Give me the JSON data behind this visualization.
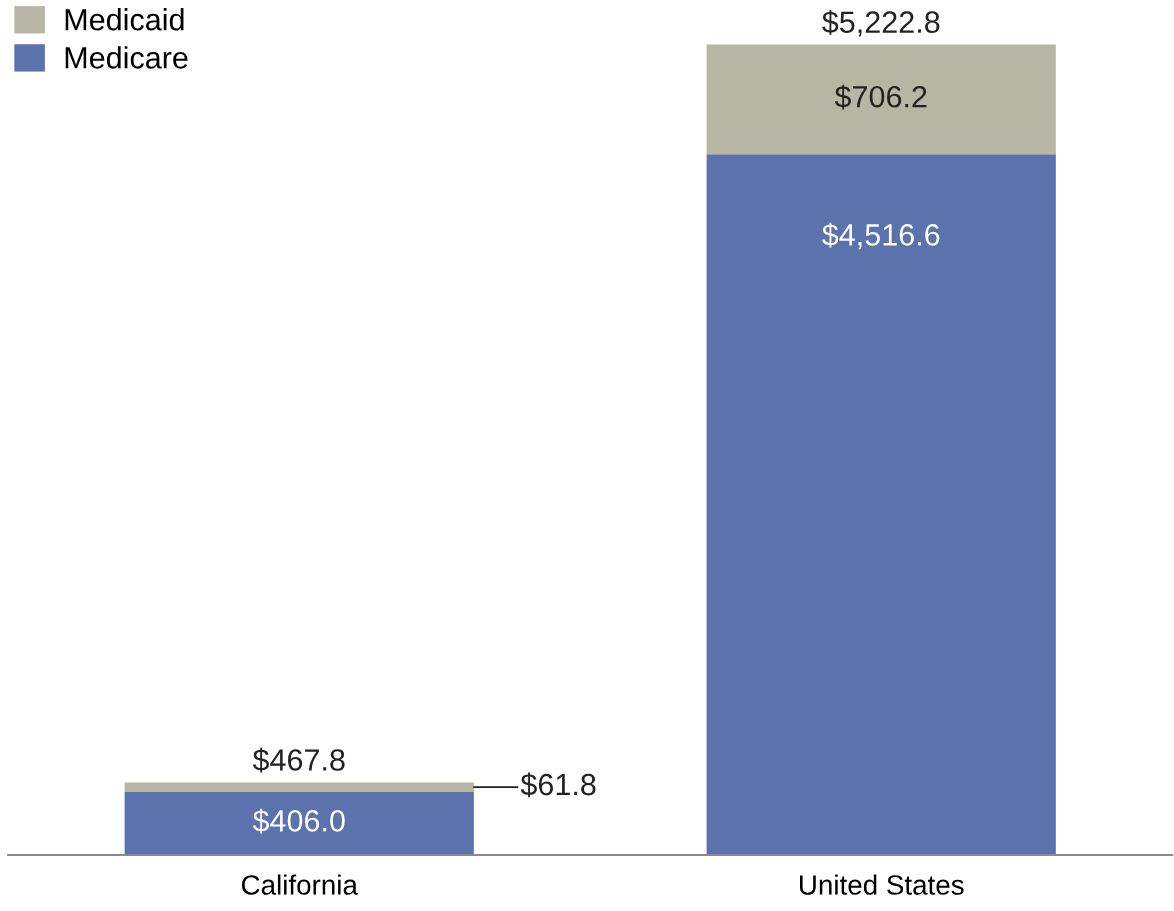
{
  "chart_data": {
    "type": "bar",
    "stacked": true,
    "categories": [
      "California",
      "United States"
    ],
    "series": [
      {
        "name": "Medicare",
        "color": "#5b72ad",
        "values": [
          406.0,
          4516.6
        ],
        "value_labels": [
          "$406.0",
          "$4,516.6"
        ]
      },
      {
        "name": "Medicaid",
        "color": "#b7b6a4",
        "values": [
          61.8,
          706.2
        ],
        "value_labels": [
          "$61.8",
          "$706.2"
        ]
      }
    ],
    "totals": [
      "$467.8",
      "$5,222.8"
    ],
    "legend": "top left",
    "grid": false
  }
}
